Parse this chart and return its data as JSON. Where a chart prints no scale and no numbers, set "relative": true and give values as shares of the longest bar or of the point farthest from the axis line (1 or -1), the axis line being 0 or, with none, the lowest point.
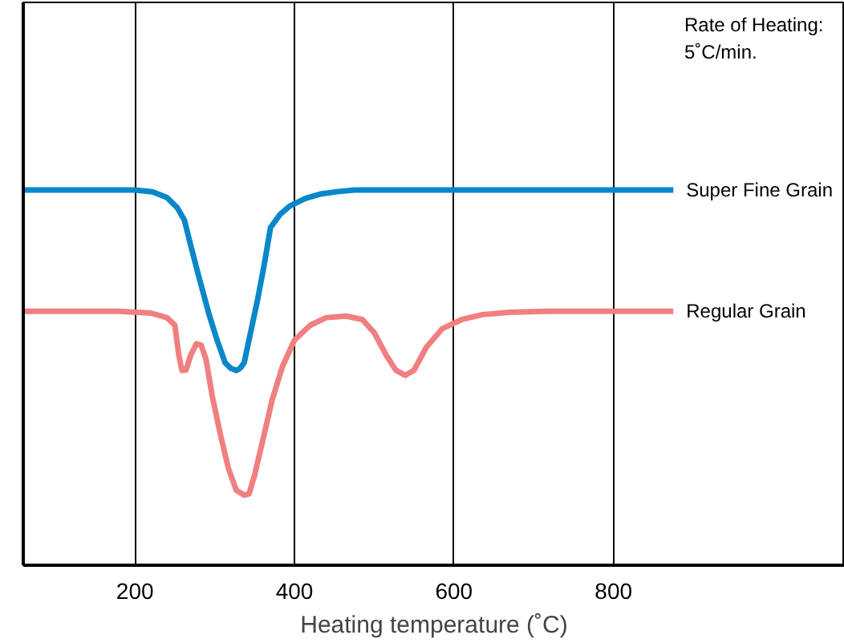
{
  "chart_data": {
    "type": "line",
    "relative": true,
    "xlabel": "Heating temperature (˚C)",
    "xlim": [
      60,
      1090
    ],
    "xticks": [
      200,
      400,
      600,
      800
    ],
    "grid": "x",
    "legend": false,
    "line_style": "solid",
    "marker": "none",
    "annotations": [
      "Rate of Heating:",
      "5˚C/min."
    ],
    "series": [
      {
        "name": "Super Fine Grain",
        "color": "#0a87c8",
        "x": [
          60,
          200,
          222,
          240,
          253,
          262,
          269,
          280,
          293,
          303,
          313,
          320,
          327,
          332,
          337,
          345,
          354,
          362,
          370,
          382,
          394,
          414,
          434,
          455,
          475,
          600,
          875
        ],
        "values": [
          1,
          1,
          0.995,
          0.98,
          0.953,
          0.92,
          0.86,
          0.77,
          0.668,
          0.6,
          0.54,
          0.525,
          0.519,
          0.525,
          0.54,
          0.62,
          0.71,
          0.8,
          0.9,
          0.935,
          0.957,
          0.978,
          0.99,
          0.996,
          1,
          1,
          1
        ]
      },
      {
        "name": "Regular Grain",
        "color": "#f08080",
        "x": [
          60,
          180,
          220,
          240,
          250,
          255,
          259,
          264,
          270,
          277,
          283,
          289,
          297,
          307,
          317,
          327,
          337,
          343,
          350,
          360,
          372,
          385,
          400,
          420,
          440,
          465,
          485,
          500,
          515,
          527,
          539,
          550,
          565,
          585,
          610,
          636,
          670,
          717,
          875
        ],
        "values": [
          0.677,
          0.677,
          0.672,
          0.66,
          0.64,
          0.56,
          0.519,
          0.52,
          0.56,
          0.59,
          0.587,
          0.55,
          0.45,
          0.35,
          0.26,
          0.2,
          0.187,
          0.19,
          0.24,
          0.33,
          0.44,
          0.53,
          0.6,
          0.64,
          0.66,
          0.664,
          0.655,
          0.62,
          0.56,
          0.52,
          0.506,
          0.52,
          0.58,
          0.63,
          0.655,
          0.668,
          0.674,
          0.677,
          0.677
        ]
      }
    ]
  }
}
